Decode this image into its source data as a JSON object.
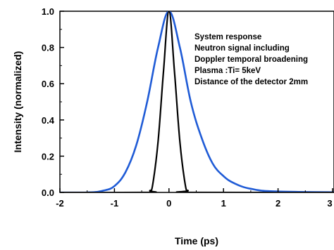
{
  "chart_data": {
    "type": "line",
    "title": "",
    "xlabel": "Time (ps)",
    "ylabel": "Intensity (normalized)",
    "xlim": [
      -2,
      3
    ],
    "ylim": [
      0,
      1.0
    ],
    "x_ticks": [
      -2,
      -1,
      0,
      1,
      2,
      3
    ],
    "y_ticks": [
      0.0,
      0.2,
      0.4,
      0.6,
      0.8,
      1.0
    ],
    "x_tick_labels": [
      "-2",
      "-1",
      "0",
      "1",
      "2",
      "3"
    ],
    "y_tick_labels": [
      "0.0",
      "0.2",
      "0.4",
      "0.6",
      "0.8",
      "1.0"
    ],
    "grid": false,
    "annotation_lines": [
      "System response",
      "Neutron signal including",
      "Doppler temporal broadening",
      "Plasma :Ti= 5keV",
      "Distance of the detector 2mm"
    ],
    "series": [
      {
        "color": "#1f5bd6",
        "x": [
          -2.3,
          -1.5,
          -1.2,
          -1.0,
          -0.8,
          -0.6,
          -0.4,
          -0.2,
          0.0,
          0.2,
          0.4,
          0.6,
          0.8,
          1.0,
          1.2,
          1.5,
          2.0,
          3.5
        ],
        "y": [
          0.0,
          0.0,
          0.01,
          0.035,
          0.11,
          0.26,
          0.5,
          0.8,
          1.0,
          0.8,
          0.5,
          0.3,
          0.16,
          0.09,
          0.05,
          0.02,
          0.005,
          0.0
        ]
      },
      {
        "color": "#000000",
        "x": [
          -2.3,
          -0.4,
          -0.35,
          -0.3,
          -0.2,
          -0.1,
          0.0,
          0.1,
          0.2,
          0.3,
          0.35,
          0.4,
          3.5
        ],
        "y": [
          0.0,
          0.0,
          0.01,
          0.04,
          0.28,
          0.67,
          1.0,
          0.67,
          0.28,
          0.04,
          0.01,
          0.0,
          0.0
        ]
      }
    ]
  }
}
